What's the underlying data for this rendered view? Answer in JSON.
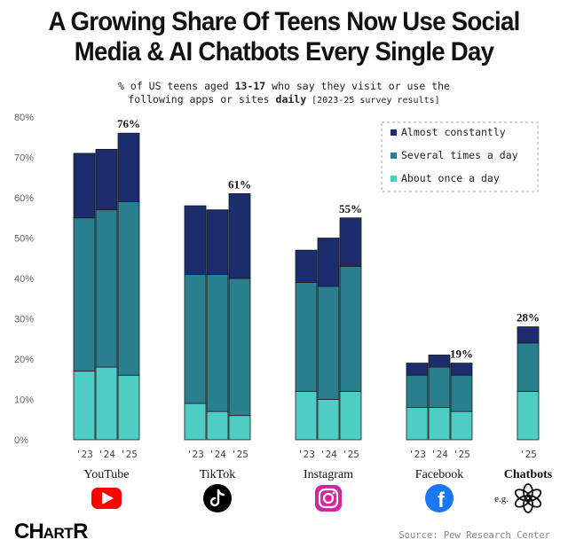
{
  "title_line1": "A Growing Share Of Teens Now Use Social",
  "title_line2": "Media & AI Chatbots Every Single Day",
  "subtitle": {
    "l1_pre": "% of US teens aged ",
    "l1_bold": "13-17",
    "l1_post": " who say they visit or use the",
    "l2_pre": "following apps or sites ",
    "l2_bold": "daily",
    "l2_small": " [2023-25 survey results]"
  },
  "logo": {
    "part1": "CH",
    "part2": "ART",
    "part3": "R"
  },
  "source": "Source: Pew Research Center",
  "colors": {
    "almost": "#1c2d6e",
    "several": "#2a7f8f",
    "once": "#4ecdc4",
    "axis_text": "#666666",
    "youtube": "#ff0000",
    "tiktok": "#000000",
    "instagram": "#d6249f",
    "facebook": "#1877f2"
  },
  "chart_data": {
    "type": "bar",
    "stacked": true,
    "ylim": [
      0,
      80
    ],
    "yticks": [
      "0%",
      "10%",
      "20%",
      "30%",
      "40%",
      "50%",
      "60%",
      "70%",
      "80%"
    ],
    "legend_position": "top-right",
    "legend": [
      "Almost constantly",
      "Several times a day",
      "About once a day"
    ],
    "groups": [
      {
        "name": "YouTube",
        "icon": "youtube-icon",
        "bars": [
          {
            "year": "'23",
            "once": 17,
            "several": 38,
            "almost": 16
          },
          {
            "year": "'24",
            "once": 18,
            "several": 39,
            "almost": 15
          },
          {
            "year": "'25",
            "once": 16,
            "several": 43,
            "almost": 17,
            "label": "76%"
          }
        ]
      },
      {
        "name": "TikTok",
        "icon": "tiktok-icon",
        "bars": [
          {
            "year": "'23",
            "once": 9,
            "several": 32,
            "almost": 17
          },
          {
            "year": "'24",
            "once": 7,
            "several": 34,
            "almost": 16
          },
          {
            "year": "'25",
            "once": 6,
            "several": 34,
            "almost": 21,
            "label": "61%"
          }
        ]
      },
      {
        "name": "Instagram",
        "icon": "instagram-icon",
        "bars": [
          {
            "year": "'23",
            "once": 12,
            "several": 27,
            "almost": 8
          },
          {
            "year": "'24",
            "once": 10,
            "several": 28,
            "almost": 12
          },
          {
            "year": "'25",
            "once": 12,
            "several": 31,
            "almost": 12,
            "label": "55%"
          }
        ]
      },
      {
        "name": "Facebook",
        "icon": "facebook-icon",
        "bars": [
          {
            "year": "'23",
            "once": 8,
            "several": 8,
            "almost": 3
          },
          {
            "year": "'24",
            "once": 8,
            "several": 10,
            "almost": 3
          },
          {
            "year": "'25",
            "once": 7,
            "several": 9,
            "almost": 3,
            "label": "19%"
          }
        ]
      },
      {
        "name": "Chatbots",
        "icon": "openai-icon",
        "note": "e.g.",
        "bars": [
          {
            "year": "'25",
            "once": 12,
            "several": 12,
            "almost": 4,
            "label": "28%"
          }
        ]
      }
    ]
  }
}
